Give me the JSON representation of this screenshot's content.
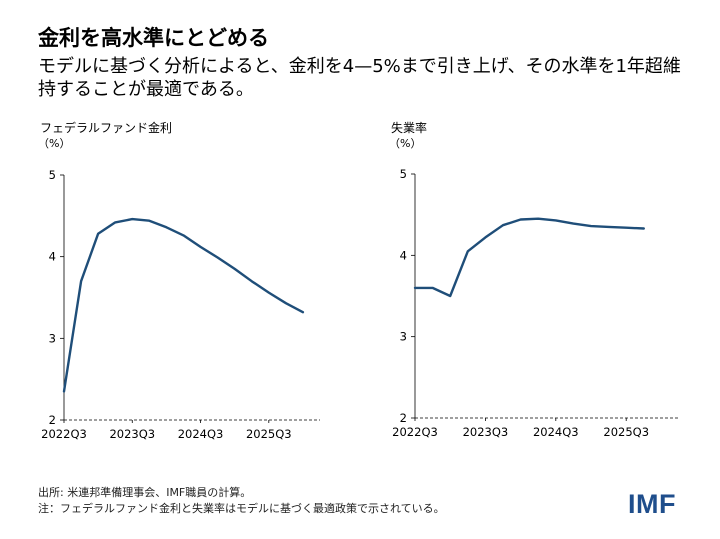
{
  "header": {
    "title": "金利を高水準にとどめる",
    "subtitle": "モデルに基づく分析によると、金利を4—5%まで引き上げ、その水準を1年超維持することが最適である。"
  },
  "chart_data": [
    {
      "type": "line",
      "title": "フェデラルファンド金利",
      "unit": "（%）",
      "x_tick_labels": [
        "2022Q3",
        "2023Q3",
        "2024Q3",
        "2025Q3"
      ],
      "y_ticks": [
        "2",
        "3",
        "4",
        "5"
      ],
      "ylim": [
        2,
        5
      ],
      "series": [
        {
          "name": "フェデラルファンド金利",
          "color": "#1f4e79",
          "values": [
            2.35,
            3.7,
            4.28,
            4.42,
            4.46,
            4.44,
            4.36,
            4.26,
            4.12,
            3.99,
            3.85,
            3.7,
            3.56,
            3.43,
            3.32
          ]
        }
      ]
    },
    {
      "type": "line",
      "title": "失業率",
      "unit": "（%）",
      "x_tick_labels": [
        "2022Q3",
        "2023Q3",
        "2024Q3",
        "2025Q3"
      ],
      "y_ticks": [
        "2",
        "3",
        "4",
        "5"
      ],
      "ylim": [
        2,
        5
      ],
      "series": [
        {
          "name": "失業率",
          "color": "#1f4e79",
          "values": [
            3.6,
            3.6,
            3.5,
            4.05,
            4.22,
            4.37,
            4.44,
            4.45,
            4.43,
            4.39,
            4.36,
            4.35,
            4.34,
            4.33
          ]
        }
      ]
    }
  ],
  "footer": {
    "source": "出所: 米連邦準備理事会、IMF職員の計算。",
    "note": "注：フェデラルファンド金利と失業率はモデルに基づく最適政策で示されている。"
  },
  "logo": {
    "text": "IMF",
    "color": "#1f4e8c"
  }
}
